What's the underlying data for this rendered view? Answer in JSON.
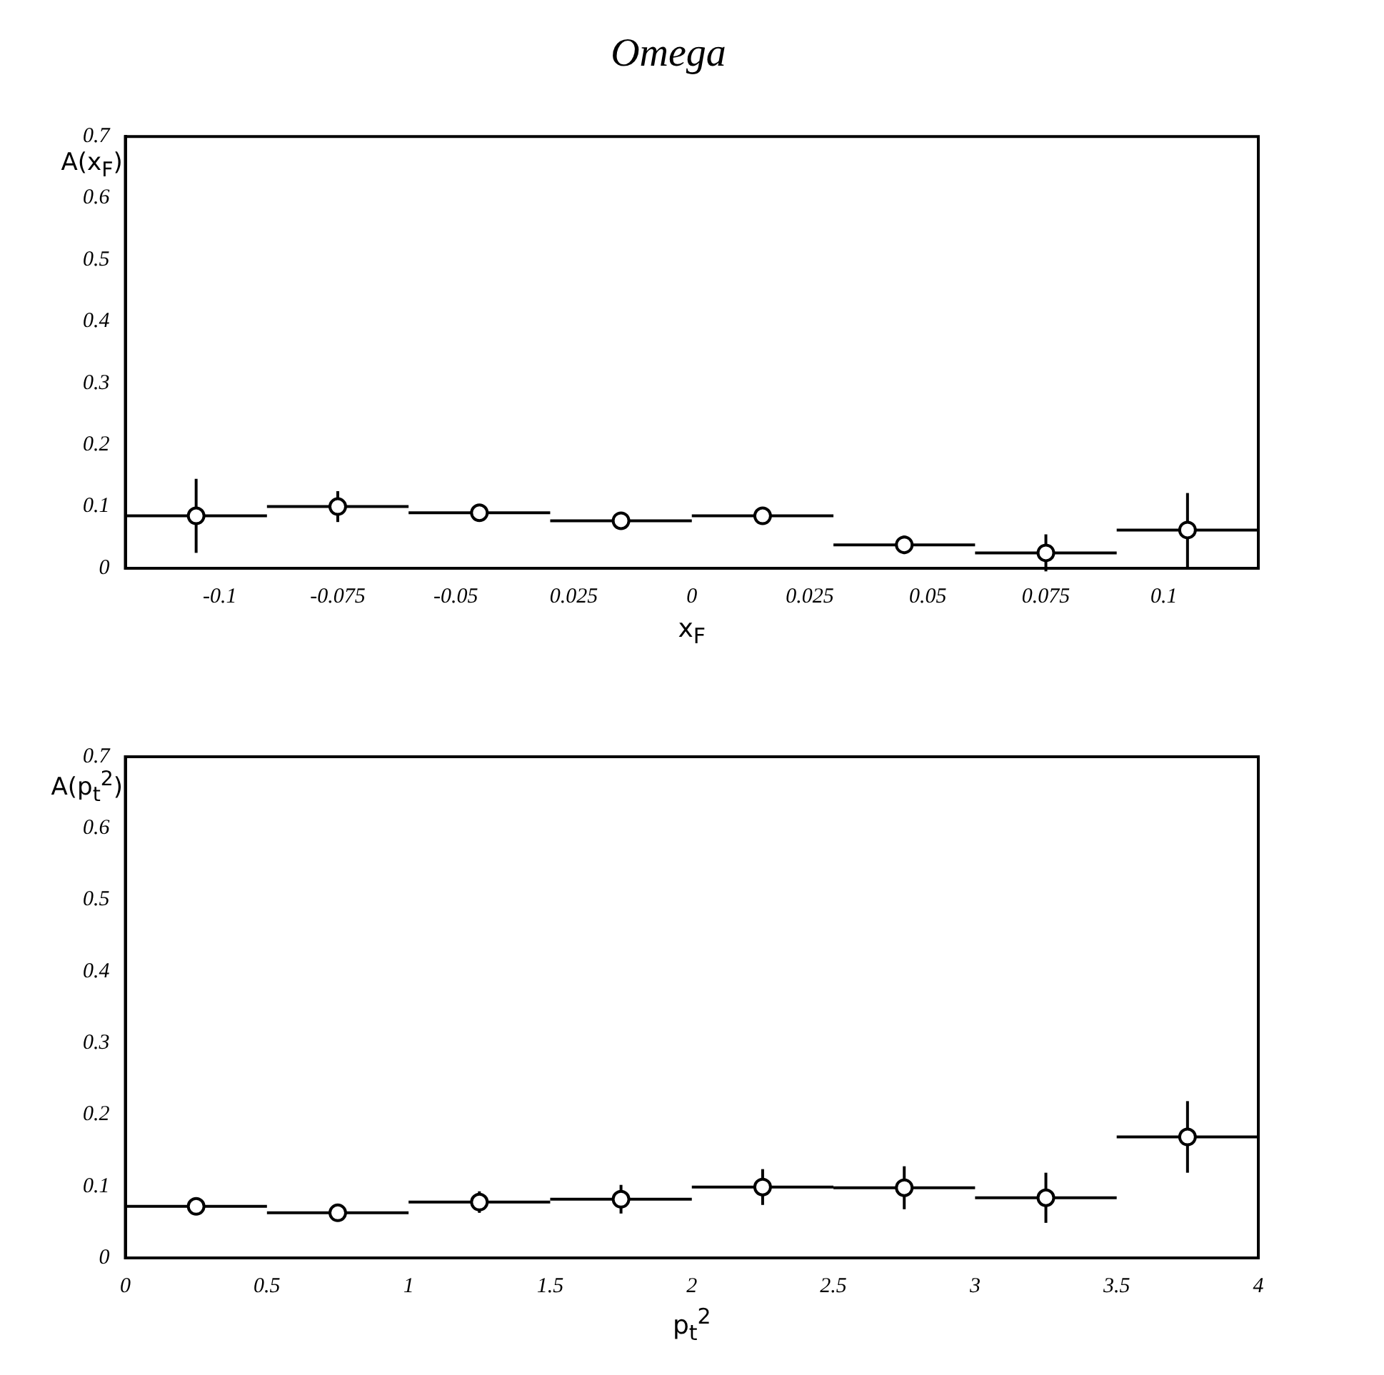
{
  "chart_data": [
    {
      "type": "scatter",
      "title": "Omega",
      "xlabel": "x$_{F}$",
      "ylabel": "A(x$_{F}$)",
      "x": [
        -0.105,
        -0.075,
        -0.045,
        -0.015,
        0.015,
        0.045,
        0.075,
        0.105
      ],
      "series": [
        {
          "color": "#000000",
          "values": [
            0.085,
            0.1,
            0.09,
            0.077,
            0.085,
            0.038,
            0.025,
            0.062
          ],
          "errors": [
            0.06,
            0.025,
            0.012,
            0.01,
            0.01,
            0.015,
            0.03,
            0.06
          ],
          "xerrors": [
            0.015,
            0.015,
            0.015,
            0.015,
            0.015,
            0.015,
            0.015,
            0.015
          ]
        }
      ],
      "xlim": [
        -0.12,
        0.12
      ],
      "xticks": [
        -0.1,
        -0.075,
        -0.05,
        {
          "value": -0.025,
          "label": "0.025"
        },
        0,
        0.025,
        0.05,
        0.075,
        0.1
      ],
      "ylim": [
        0,
        0.7
      ],
      "yticks": [
        0,
        0.1,
        0.2,
        0.3,
        0.4,
        0.5,
        0.6,
        0.7
      ],
      "marker": "circle",
      "grid": false,
      "legend": false
    },
    {
      "type": "scatter",
      "xlabel": "p$_{t}$$^{2}$",
      "ylabel": "A(p$_{t}$$^{2}$)",
      "x": [
        0.25,
        0.75,
        1.25,
        1.75,
        2.25,
        2.75,
        3.25,
        3.75
      ],
      "series": [
        {
          "color": "#000000",
          "values": [
            0.072,
            0.063,
            0.078,
            0.082,
            0.099,
            0.098,
            0.084,
            0.169
          ],
          "errors": [
            0.012,
            0.01,
            0.015,
            0.02,
            0.025,
            0.03,
            0.035,
            0.05
          ],
          "xerrors": [
            0.25,
            0.25,
            0.25,
            0.25,
            0.25,
            0.25,
            0.25,
            0.25
          ]
        }
      ],
      "xlim": [
        0,
        4
      ],
      "xticks": [
        0,
        0.5,
        1,
        1.5,
        2,
        2.5,
        3,
        3.5,
        4
      ],
      "ylim": [
        0,
        0.7
      ],
      "yticks": [
        0,
        0.1,
        0.2,
        0.3,
        0.4,
        0.5,
        0.6,
        0.7
      ],
      "marker": "circle",
      "grid": false,
      "legend": false
    }
  ]
}
